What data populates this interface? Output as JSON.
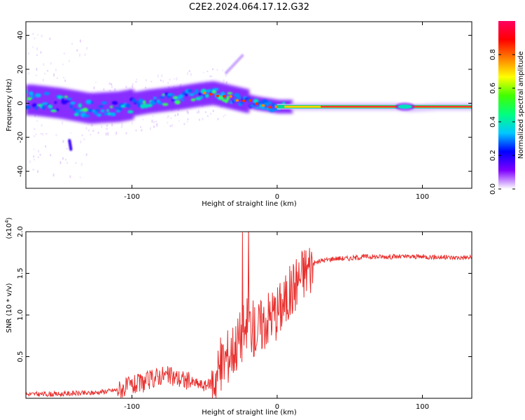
{
  "title": "C2E2.2024.064.17.12.G32",
  "chart_data": [
    {
      "type": "heatmap",
      "xlabel": "Height of straight line (km)",
      "ylabel": "Frequency (Hz)",
      "xlim": [
        -173,
        134
      ],
      "ylim": [
        -50,
        48
      ],
      "xticks": [
        -100,
        0,
        100
      ],
      "yticks": [
        -40,
        -20,
        0,
        20,
        40
      ],
      "colorbar": {
        "label": "Normalized spectral amplitude",
        "range": [
          0,
          1
        ],
        "ticks": [
          "0.0",
          "0.2",
          "0.4",
          "0.6",
          "0.8"
        ],
        "colors": [
          "#ffffff",
          "#7f00ff",
          "#0000ff",
          "#00c8ff",
          "#00ff80",
          "#40ff00",
          "#ffff00",
          "#ff8000",
          "#ff0000",
          "#ff0060"
        ]
      },
      "ridge": {
        "x": [
          -170,
          -150,
          -130,
          -110,
          -90,
          -70,
          -55,
          -45,
          -30,
          -15,
          0,
          20,
          50,
          80,
          90,
          110,
          134
        ],
        "freq": [
          2,
          0,
          -3,
          -2,
          1,
          3,
          5,
          6,
          3,
          0,
          -2,
          -2,
          -2,
          -2,
          -3,
          -2,
          -2
        ]
      },
      "features": [
        {
          "name": "upper-streak",
          "x": [
            -35,
            -24
          ],
          "freq": [
            18,
            28
          ]
        },
        {
          "name": "lower-blob",
          "x": [
            -143,
            -142
          ],
          "freq": [
            -22,
            -27
          ]
        }
      ]
    },
    {
      "type": "line",
      "xlabel": "Height of straight line (km)",
      "ylabel": "SNR (10 * v/v)",
      "yexp": "(x10",
      "yexp_power": "4",
      "xlim": [
        -173,
        134
      ],
      "ylim": [
        0,
        2.0
      ],
      "xticks": [
        -100,
        0,
        100
      ],
      "yticks": [
        "0.5",
        "1.0",
        "1.5",
        "2.0"
      ],
      "color": "#e8302e",
      "x": [
        -173,
        -160,
        -150,
        -140,
        -130,
        -120,
        -110,
        -100,
        -90,
        -80,
        -70,
        -60,
        -50,
        -45,
        -40,
        -35,
        -30,
        -25,
        -20,
        -15,
        -10,
        -5,
        0,
        5,
        10,
        15,
        20,
        25,
        30,
        40,
        50,
        60,
        80,
        100,
        120,
        134
      ],
      "values": [
        0.05,
        0.05,
        0.05,
        0.06,
        0.06,
        0.08,
        0.1,
        0.15,
        0.2,
        0.28,
        0.25,
        0.2,
        0.15,
        0.18,
        0.35,
        0.5,
        0.6,
        0.75,
        0.95,
        0.8,
        0.9,
        1.0,
        1.05,
        1.15,
        1.3,
        1.45,
        1.55,
        1.62,
        1.65,
        1.68,
        1.68,
        1.7,
        1.7,
        1.7,
        1.69,
        1.69
      ]
    }
  ]
}
